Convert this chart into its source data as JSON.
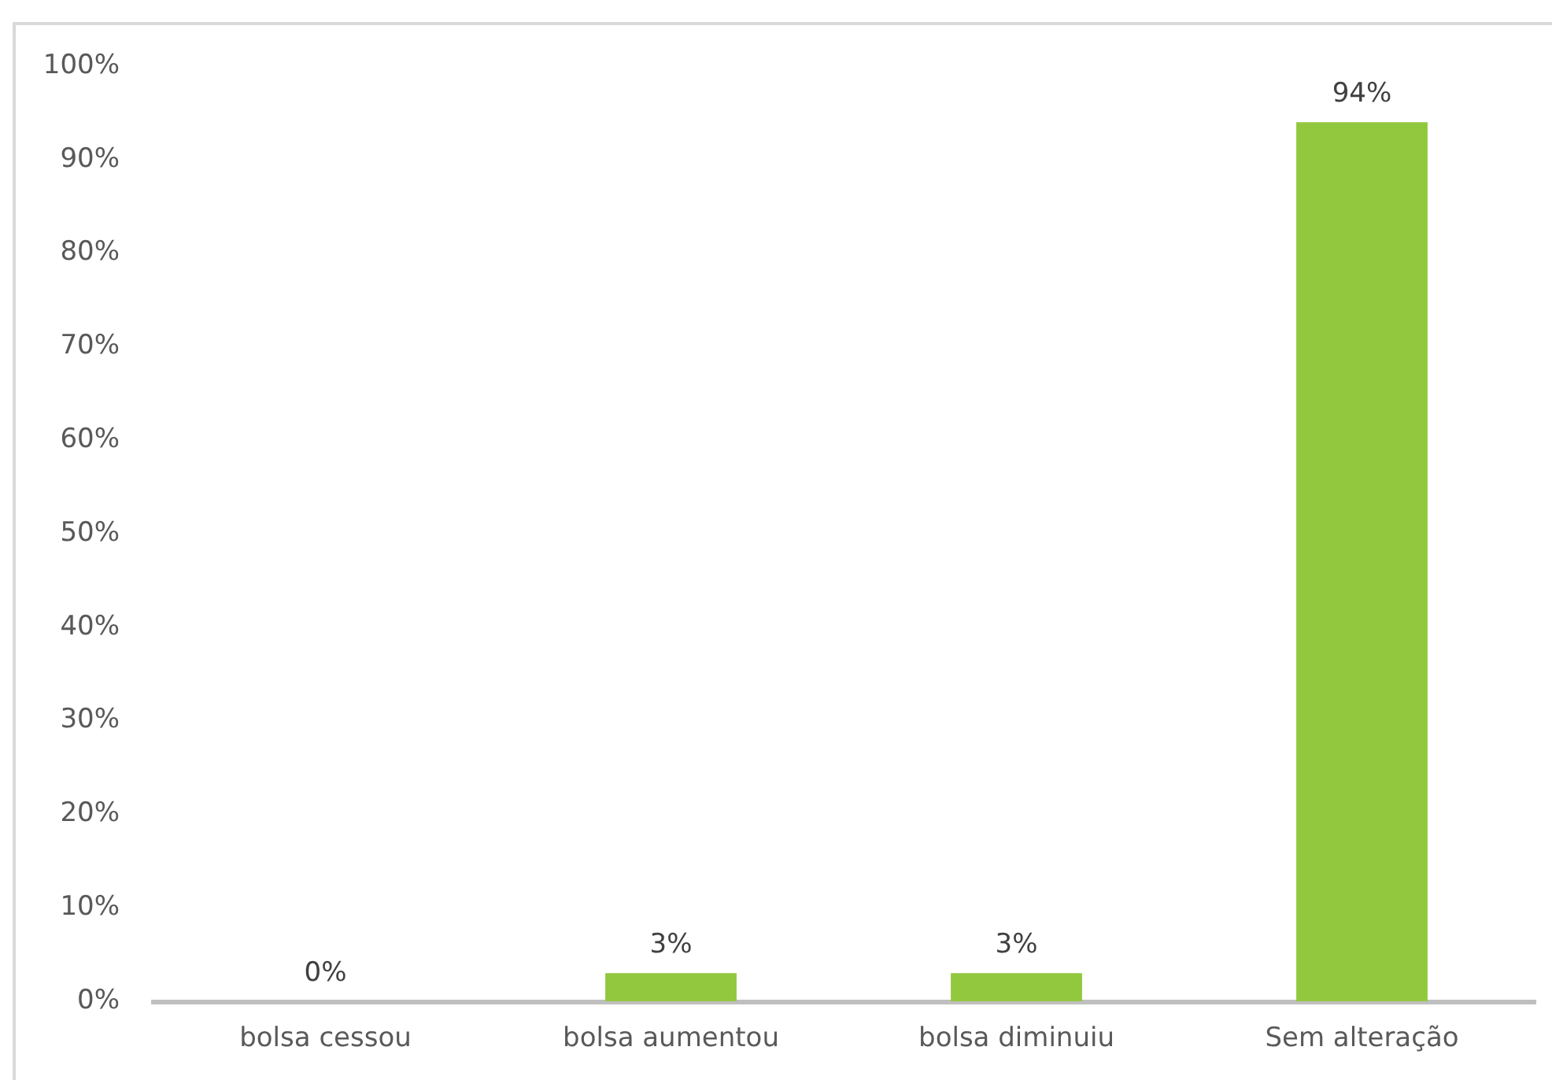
{
  "chart_data": {
    "type": "bar",
    "categories": [
      "bolsa cessou",
      "bolsa aumentou",
      "bolsa diminuiu",
      "Sem alteração"
    ],
    "values": [
      0,
      3,
      3,
      94
    ],
    "value_labels": [
      "0%",
      "3%",
      "3%",
      "94%"
    ],
    "color": "#92c83e",
    "ylim": [
      0,
      100
    ],
    "yticks": [
      {
        "value": 0,
        "label": "0%"
      },
      {
        "value": 10,
        "label": "10%"
      },
      {
        "value": 20,
        "label": "20%"
      },
      {
        "value": 30,
        "label": "30%"
      },
      {
        "value": 40,
        "label": "40%"
      },
      {
        "value": 50,
        "label": "50%"
      },
      {
        "value": 60,
        "label": "60%"
      },
      {
        "value": 70,
        "label": "70%"
      },
      {
        "value": 80,
        "label": "80%"
      },
      {
        "value": 90,
        "label": "90%"
      },
      {
        "value": 100,
        "label": "100%"
      }
    ]
  }
}
